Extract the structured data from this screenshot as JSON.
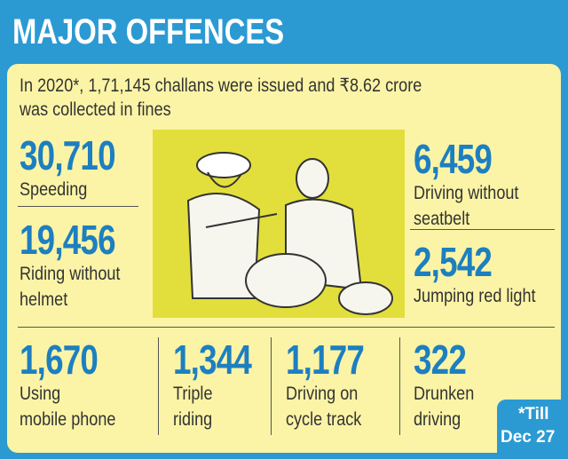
{
  "header": {
    "title": "MAJOR OFFENCES"
  },
  "intro": [
    "In 2020*, 1,71,145 challans were issued and ₹8.62 crore",
    "was collected in fines"
  ],
  "offences": [
    {
      "value": "30,710",
      "label_lines": [
        "Speeding"
      ]
    },
    {
      "value": "19,456",
      "label_lines": [
        "Riding without",
        "helmet"
      ]
    },
    {
      "value": "6,459",
      "label_lines": [
        "Driving without",
        "seatbelt"
      ]
    },
    {
      "value": "2,542",
      "label_lines": [
        "Jumping red light"
      ]
    },
    {
      "value": "1,670",
      "label_lines": [
        "Using",
        "mobile phone"
      ]
    },
    {
      "value": "1,344",
      "label_lines": [
        "Triple",
        "riding"
      ]
    },
    {
      "value": "1,177",
      "label_lines": [
        "Driving on",
        "cycle track"
      ]
    },
    {
      "value": "322",
      "label_lines": [
        "Drunken",
        "driving"
      ]
    }
  ],
  "footnote": [
    "*Till",
    "Dec 27"
  ]
}
